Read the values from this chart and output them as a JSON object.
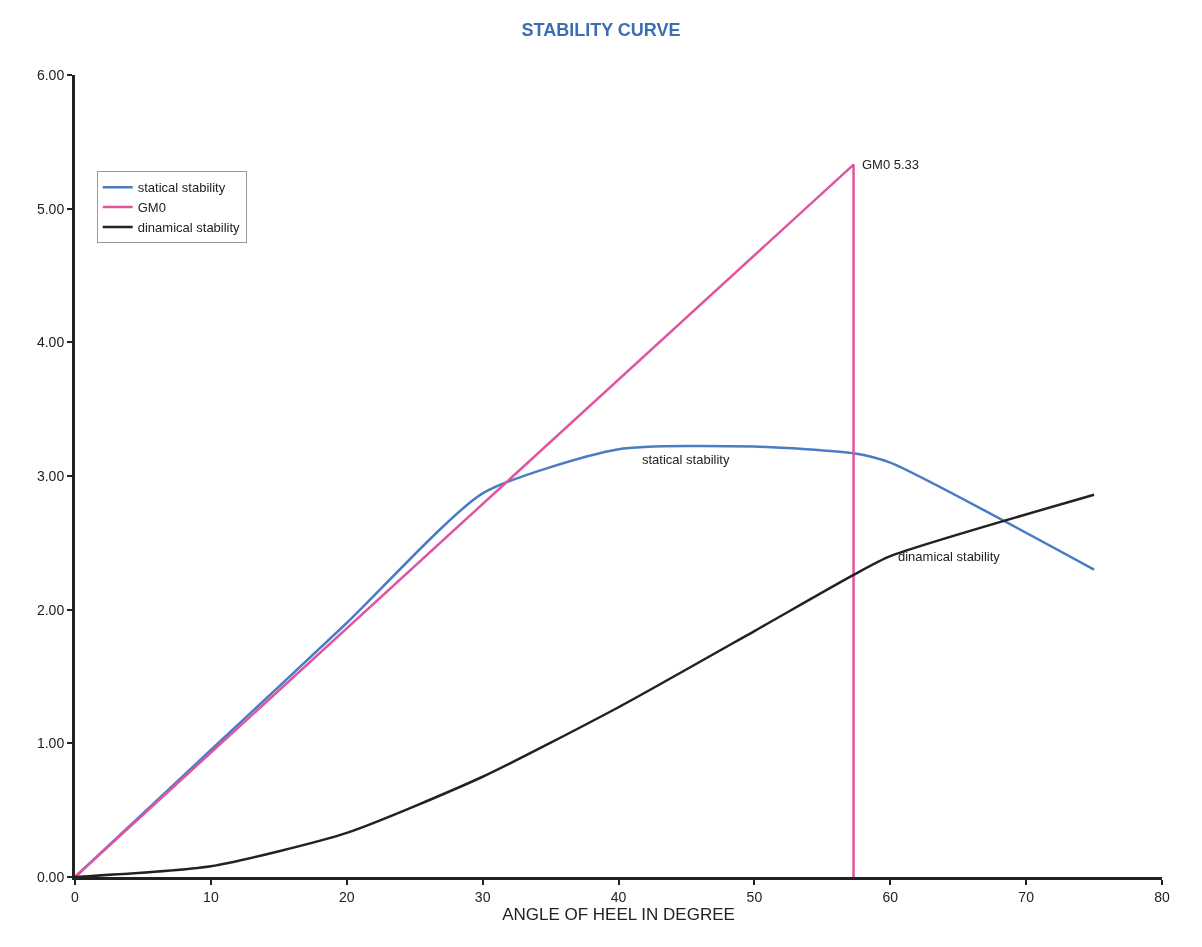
{
  "chart_data": {
    "type": "line",
    "title": "STABILITY CURVE",
    "xlabel": "ANGLE OF HEEL IN DEGREE",
    "series": [
      {
        "name": "statical stability",
        "color": "#4a7cc4",
        "x": [
          0,
          10,
          20,
          30,
          40,
          50,
          57.3,
          60,
          75
        ],
        "values": [
          0,
          0.95,
          1.9,
          2.87,
          3.2,
          3.22,
          3.17,
          3.1,
          2.3
        ]
      },
      {
        "name": "GM0",
        "color": "#e0559f",
        "x": [
          0,
          57.3,
          57.3
        ],
        "values": [
          0,
          5.33,
          0
        ]
      },
      {
        "name": "dinamical stability",
        "color": "#222222",
        "x": [
          0,
          10,
          20,
          30,
          40,
          50,
          57.3,
          60,
          75
        ],
        "values": [
          0,
          0.08,
          0.33,
          0.75,
          1.27,
          1.84,
          2.26,
          2.4,
          2.86
        ]
      }
    ],
    "annotations": [
      {
        "text": "GM0 5.33",
        "x": 57.3,
        "y": 5.33
      },
      {
        "text": "statical stability",
        "x": 45,
        "y": 3.2
      },
      {
        "text": "dinamical stability",
        "x": 60,
        "y": 2.4
      }
    ],
    "xlim": [
      0,
      80
    ],
    "xticks": [
      0,
      10,
      20,
      30,
      40,
      50,
      60,
      70,
      80
    ],
    "ylim": [
      0,
      6
    ],
    "yticks": [
      {
        "value": 0,
        "label": "0.00"
      },
      {
        "value": 1,
        "label": "1.00"
      },
      {
        "value": 2,
        "label": "2.00"
      },
      {
        "value": 3,
        "label": "3.00"
      },
      {
        "value": 4,
        "label": "4.00"
      },
      {
        "value": 5,
        "label": "5.00"
      },
      {
        "value": 6,
        "label": "6.00"
      }
    ],
    "grid": false,
    "legend": "top left",
    "marker": "none",
    "line_style": "solid"
  }
}
